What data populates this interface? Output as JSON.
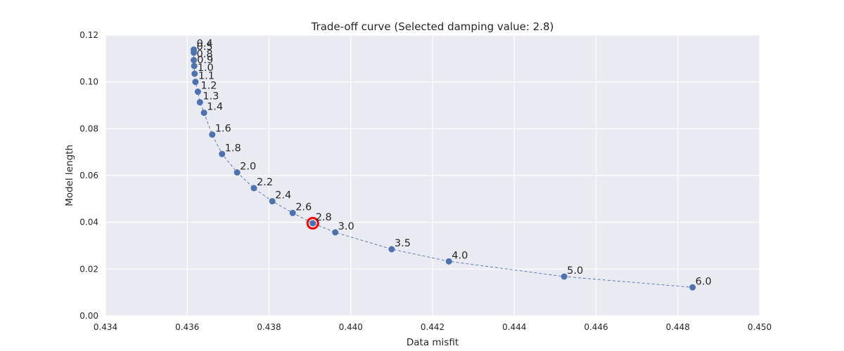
{
  "chart_data": {
    "type": "scatter",
    "title": "Trade-off curve (Selected damping value: 2.8)",
    "xlabel": "Data misfit",
    "ylabel": "Model length",
    "xlim": [
      0.434,
      0.45
    ],
    "ylim": [
      0.0,
      0.12
    ],
    "xticks": [
      "0.434",
      "0.436",
      "0.438",
      "0.440",
      "0.442",
      "0.444",
      "0.446",
      "0.448",
      "0.450"
    ],
    "yticks": [
      "0.00",
      "0.02",
      "0.04",
      "0.06",
      "0.08",
      "0.10",
      "0.12"
    ],
    "grid": true,
    "connecting_line": "dashed",
    "selected_label": "2.8",
    "colors": {
      "background": "#EAEAF2",
      "grid": "#FFFFFF",
      "marker": "#4C72B0",
      "selected": "#FF0000"
    },
    "points": [
      {
        "label": "0.4",
        "x": 0.43616,
        "y": 0.1138
      },
      {
        "label": "0.5",
        "x": 0.43616,
        "y": 0.1125
      },
      {
        "label": "0.8",
        "x": 0.43616,
        "y": 0.1093
      },
      {
        "label": "0.9",
        "x": 0.43617,
        "y": 0.1068
      },
      {
        "label": "1.0",
        "x": 0.43618,
        "y": 0.1035
      },
      {
        "label": "1.1",
        "x": 0.4362,
        "y": 0.1
      },
      {
        "label": "1.2",
        "x": 0.43626,
        "y": 0.0958
      },
      {
        "label": "1.3",
        "x": 0.43631,
        "y": 0.0913
      },
      {
        "label": "1.4",
        "x": 0.43641,
        "y": 0.0868
      },
      {
        "label": "1.6",
        "x": 0.43661,
        "y": 0.0775
      },
      {
        "label": "1.8",
        "x": 0.43685,
        "y": 0.0692
      },
      {
        "label": "2.0",
        "x": 0.43722,
        "y": 0.0613
      },
      {
        "label": "2.2",
        "x": 0.43763,
        "y": 0.0546
      },
      {
        "label": "2.4",
        "x": 0.43808,
        "y": 0.049
      },
      {
        "label": "2.6",
        "x": 0.43858,
        "y": 0.044
      },
      {
        "label": "2.8",
        "x": 0.43907,
        "y": 0.0396
      },
      {
        "label": "3.0",
        "x": 0.43962,
        "y": 0.0357
      },
      {
        "label": "3.5",
        "x": 0.441,
        "y": 0.0285
      },
      {
        "label": "4.0",
        "x": 0.4424,
        "y": 0.0233
      },
      {
        "label": "5.0",
        "x": 0.44522,
        "y": 0.0168
      },
      {
        "label": "6.0",
        "x": 0.44836,
        "y": 0.0122
      }
    ]
  }
}
